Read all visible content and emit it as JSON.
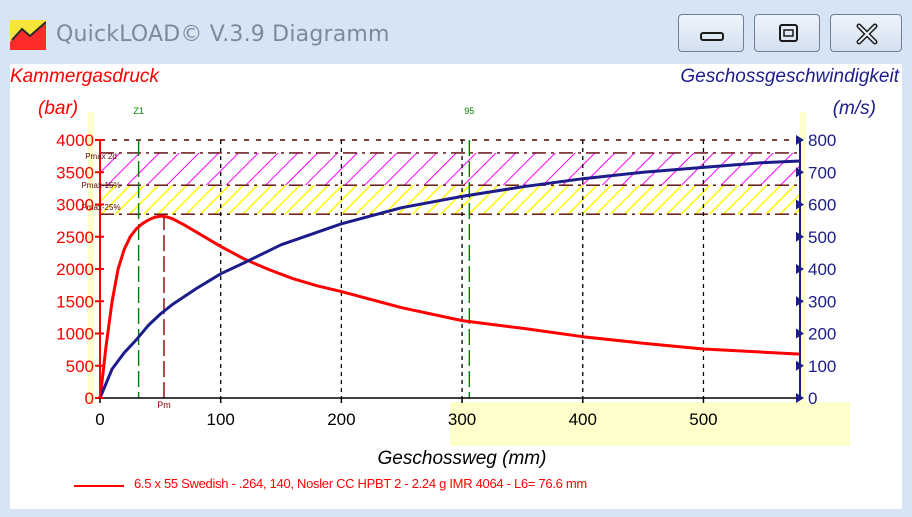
{
  "window": {
    "title": "QuickLOAD© V.3.9 Diagramm",
    "buttons": {
      "minimize": "minimize-icon",
      "restore": "restore-icon",
      "close": "close-icon"
    }
  },
  "chart_data": {
    "type": "line",
    "xlabel": "Geschossweg (mm)",
    "x_ticks": [
      "0",
      "100",
      "200",
      "300",
      "400",
      "500"
    ],
    "xlim": [
      0,
      580
    ],
    "left_axis": {
      "label_line1": "Kammergasdruck",
      "label_line2": "(bar)",
      "ylim": [
        0,
        4000
      ],
      "ticks": [
        "0",
        "500",
        "1000",
        "1500",
        "2000",
        "2500",
        "3000",
        "3500",
        "4000"
      ],
      "color": "#ff0000"
    },
    "right_axis": {
      "label_line1": "Geschossgeschwindigkeit",
      "label_line2": "(m/s)",
      "ylim": [
        0,
        800
      ],
      "ticks": [
        "0",
        "100",
        "200",
        "300",
        "400",
        "500",
        "600",
        "700",
        "800"
      ],
      "color": "#1c1c8c"
    },
    "bands": [
      {
        "label": "Pmax",
        "from": 3300,
        "to": 3800,
        "color": "#ff00ff"
      },
      {
        "label": "Pmax-15%",
        "from": 2850,
        "to": 3300,
        "color": "#ffff00"
      }
    ],
    "band_labels": [
      "Pmax 2d",
      "Pmax-15%",
      "Pmax-25%"
    ],
    "markers": [
      {
        "label": "Z1",
        "x": 32,
        "color": "#008000"
      },
      {
        "label": "95",
        "x": 306,
        "color": "#008000"
      },
      {
        "label": "Pm",
        "x": 53,
        "color": "#8b0000"
      }
    ],
    "series": [
      {
        "name": "6.5 x 55 Swedish - .264, 140, Nosler CC HPBT 2 - 2.24 g IMR 4064 - L6= 76.6 mm",
        "axis": "left",
        "color": "#ff0000",
        "x": [
          0,
          2,
          5,
          10,
          15,
          20,
          25,
          30,
          35,
          40,
          45,
          50,
          55,
          60,
          70,
          80,
          90,
          100,
          120,
          140,
          160,
          180,
          200,
          250,
          300,
          350,
          400,
          450,
          500,
          550,
          580
        ],
        "y": [
          0,
          300,
          800,
          1500,
          2000,
          2300,
          2500,
          2620,
          2700,
          2760,
          2800,
          2820,
          2810,
          2780,
          2680,
          2570,
          2460,
          2350,
          2150,
          1990,
          1850,
          1740,
          1650,
          1400,
          1200,
          1080,
          950,
          850,
          760,
          710,
          680
        ]
      },
      {
        "name": "Geschossgeschwindigkeit",
        "axis": "right",
        "color": "#1c1c8c",
        "x": [
          0,
          10,
          20,
          30,
          40,
          50,
          60,
          80,
          100,
          120,
          150,
          200,
          250,
          300,
          350,
          400,
          450,
          500,
          550,
          580
        ],
        "y": [
          0,
          90,
          140,
          180,
          225,
          260,
          290,
          340,
          385,
          420,
          475,
          540,
          590,
          625,
          655,
          680,
          700,
          715,
          730,
          735
        ]
      }
    ]
  }
}
